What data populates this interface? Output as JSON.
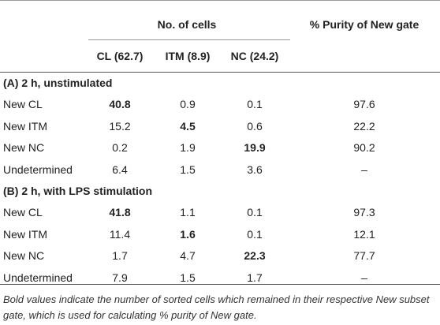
{
  "header": {
    "group": "No. of cells",
    "columns": [
      "CL (62.7)",
      "ITM (8.9)",
      "NC (24.2)"
    ],
    "purity": "% Purity of New gate"
  },
  "sections": [
    {
      "title": "(A) 2 h, unstimulated",
      "rows": [
        {
          "cells": [
            "New CL",
            "40.8",
            "0.9",
            "0.1",
            "97.6"
          ],
          "bold": 1
        },
        {
          "cells": [
            "New ITM",
            "15.2",
            "4.5",
            "0.6",
            "22.2"
          ],
          "bold": 2
        },
        {
          "cells": [
            "New NC",
            "0.2",
            "1.9",
            "19.9",
            "90.2"
          ],
          "bold": 3
        },
        {
          "cells": [
            "Undetermined",
            "6.4",
            "1.5",
            "3.6",
            "–"
          ]
        }
      ]
    },
    {
      "title": "(B) 2 h, with LPS stimulation",
      "rows": [
        {
          "cells": [
            "New CL",
            "41.8",
            "1.1",
            "0.1",
            "97.3"
          ],
          "bold": 1
        },
        {
          "cells": [
            "New ITM",
            "11.4",
            "1.6",
            "0.1",
            "12.1"
          ],
          "bold": 2
        },
        {
          "cells": [
            "New NC",
            "1.7",
            "4.7",
            "22.3",
            "77.7"
          ],
          "bold": 3
        },
        {
          "cells": [
            "Undetermined",
            "7.9",
            "1.5",
            "1.7",
            "–"
          ]
        }
      ]
    }
  ],
  "footnote": "Bold values indicate the number of sorted cells which remained in their respective New subset gate, which is used for calculating % purity of New gate."
}
